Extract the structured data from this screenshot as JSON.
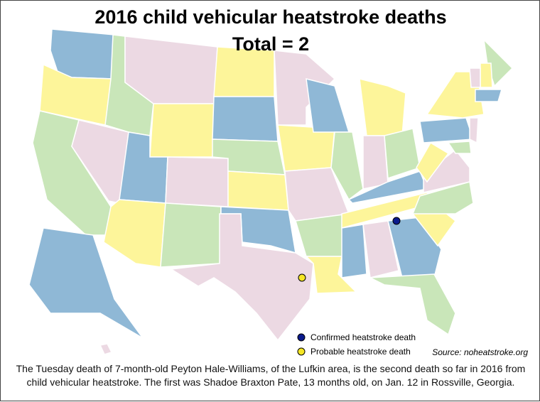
{
  "title": "2016 child vehicular heatstroke deaths",
  "subtitle": "Total = 2",
  "legend": [
    "Confirmed heatstroke death",
    "Probable heatstroke death"
  ],
  "source": "Source: noheatstroke.org",
  "caption": "The Tuesday death of 7-month-old Peyton Hale-Williams, of the Lufkin area, is the second death so far in 2016 from child vehicular heatstroke. The first was Shadoe Braxton Pate, 13 months old, on Jan. 12 in Rossville, Georgia."
}
